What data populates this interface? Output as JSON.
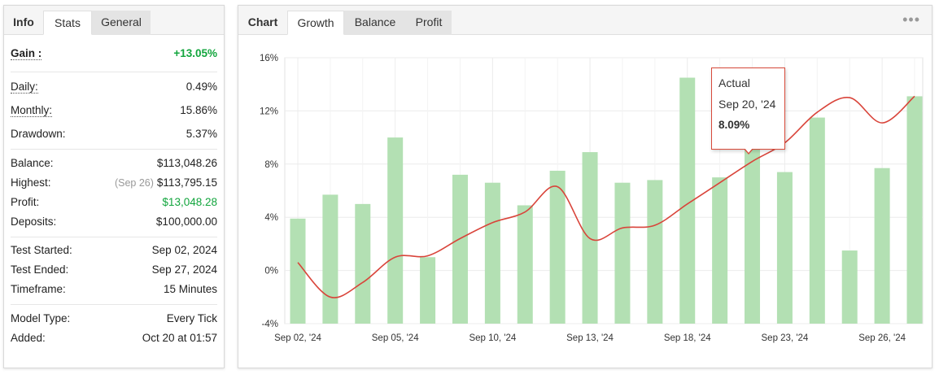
{
  "left_tabs": [
    {
      "label": "Info"
    },
    {
      "label": "Stats"
    },
    {
      "label": "General"
    }
  ],
  "stats": {
    "gain": {
      "label": "Gain :",
      "value": "+13.05%"
    },
    "daily": {
      "label": "Daily:",
      "value": "0.49%"
    },
    "monthly": {
      "label": "Monthly:",
      "value": "15.86%"
    },
    "drawdown": {
      "label": "Drawdown:",
      "value": "5.37%"
    },
    "balance": {
      "label": "Balance:",
      "value": "$113,048.26"
    },
    "highest": {
      "label": "Highest:",
      "date": "(Sep 26)",
      "value": "$113,795.15"
    },
    "profit": {
      "label": "Profit:",
      "value": "$13,048.28"
    },
    "deposits": {
      "label": "Deposits:",
      "value": "$100,000.00"
    },
    "test_started": {
      "label": "Test Started:",
      "value": "Sep 02, 2024"
    },
    "test_ended": {
      "label": "Test Ended:",
      "value": "Sep 27, 2024"
    },
    "timeframe": {
      "label": "Timeframe:",
      "value": "15 Minutes"
    },
    "model_type": {
      "label": "Model Type:",
      "value": "Every Tick"
    },
    "added": {
      "label": "Added:",
      "value": "Oct 20 at 01:57"
    }
  },
  "right_tabs": [
    {
      "label": "Chart"
    },
    {
      "label": "Growth"
    },
    {
      "label": "Balance"
    },
    {
      "label": "Profit"
    }
  ],
  "more_icon": "more-dots-icon",
  "colors": {
    "bar": "#b3e0b3",
    "line": "#d9443a",
    "positive": "#12a53d",
    "grid": "#ececec"
  },
  "tooltip": {
    "title": "Actual",
    "date": "Sep 20, '24",
    "value": "8.09%"
  },
  "chart_data": {
    "type": "bar",
    "ylim": [
      -4,
      16
    ],
    "y_ticks": [
      "16%",
      "12%",
      "8%",
      "4%",
      "0%",
      "-4%"
    ],
    "y_tick_values": [
      16,
      12,
      8,
      4,
      0,
      -4
    ],
    "x_tick_labels": [
      "Sep 02, '24",
      "Sep 05, '24",
      "Sep 10, '24",
      "Sep 13, '24",
      "Sep 18, '24",
      "Sep 23, '24",
      "Sep 26, '24"
    ],
    "grid": true,
    "series": [
      {
        "type": "bar",
        "values": [
          3.9,
          5.7,
          5.0,
          10.0,
          1.0,
          7.2,
          6.6,
          4.9,
          7.5,
          8.9,
          6.6,
          6.8,
          14.5,
          7.0,
          9.4,
          7.4,
          11.5,
          1.5,
          7.7,
          13.1
        ]
      },
      {
        "type": "line",
        "values": [
          0.6,
          -2.0,
          -0.9,
          1.0,
          1.1,
          2.4,
          3.6,
          4.4,
          6.3,
          2.4,
          3.2,
          3.4,
          5.0,
          6.6,
          8.2,
          9.6,
          11.9,
          13.0,
          11.1,
          13.1
        ]
      }
    ]
  }
}
